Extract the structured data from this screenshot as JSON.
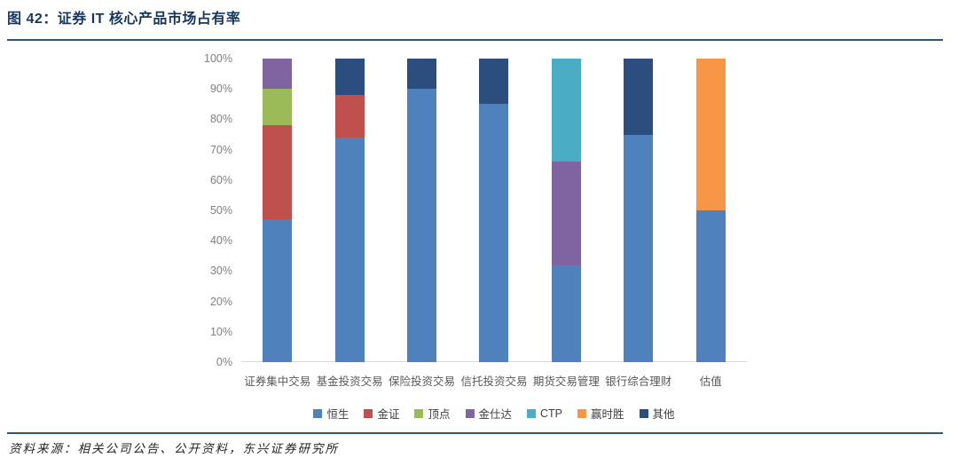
{
  "header": {
    "title": "图 42：证券 IT 核心产品市场占有率"
  },
  "footer": {
    "source": "资料来源：相关公司公告、公开资料，东兴证券研究所"
  },
  "colors": {
    "title_text": "#17375D",
    "rule": "#2E5878",
    "y_axis_label": "#808080",
    "x_axis_label": "#595959",
    "legend_label": "#404040",
    "baseline": "#D9D9D9"
  },
  "chart_data": {
    "type": "bar",
    "stacked": true,
    "title": "图 42：证券 IT 核心产品市场占有率",
    "xlabel": "",
    "ylabel": "",
    "ylim": [
      0,
      100
    ],
    "ytick_step": 10,
    "ytick_format": "percent",
    "grid": false,
    "legend_position": "bottom",
    "categories": [
      "证券集中交易",
      "基金投资交易",
      "保险投资交易",
      "信托投资交易",
      "期货交易管理",
      "银行综合理财",
      "估值"
    ],
    "series": [
      {
        "name": "恒生",
        "color": "#4F81BD",
        "values": [
          47,
          74,
          90,
          85,
          32,
          75,
          50
        ]
      },
      {
        "name": "金证",
        "color": "#C0504D",
        "values": [
          31,
          14,
          0,
          0,
          0,
          0,
          0
        ]
      },
      {
        "name": "顶点",
        "color": "#9BBB59",
        "values": [
          12,
          0,
          0,
          0,
          0,
          0,
          0
        ]
      },
      {
        "name": "金仕达",
        "color": "#8064A2",
        "values": [
          10,
          0,
          0,
          0,
          34,
          0,
          0
        ]
      },
      {
        "name": "CTP",
        "color": "#4BACC6",
        "values": [
          0,
          0,
          0,
          0,
          34,
          0,
          0
        ]
      },
      {
        "name": "赢时胜",
        "color": "#F79646",
        "values": [
          0,
          0,
          0,
          0,
          0,
          0,
          50
        ]
      },
      {
        "name": "其他",
        "color": "#2B4E7E",
        "values": [
          0,
          12,
          10,
          15,
          0,
          25,
          0
        ]
      }
    ]
  }
}
